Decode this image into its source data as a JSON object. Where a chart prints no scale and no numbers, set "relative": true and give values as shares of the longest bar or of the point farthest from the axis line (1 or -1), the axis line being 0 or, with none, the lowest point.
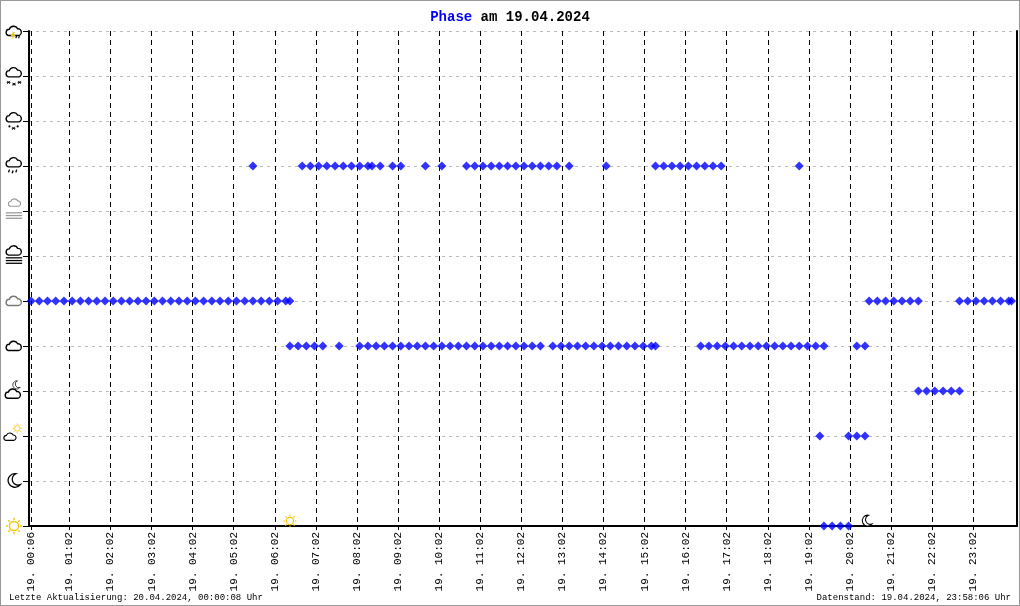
{
  "chart_data": {
    "type": "scatter",
    "title": "am 19.04.2024",
    "annotations": [
      "Letzte Aktualisierung: 20.04.2024, 00:00:08 Uhr",
      "Datenstand: 19.04.2024, 23:58:06 Uhr"
    ],
    "xlim": [
      "2024-04-19T00:03",
      "2024-04-20T00:06"
    ],
    "xticks": [
      {
        "value": "2024-04-19T00:06",
        "label": "19. 00:06"
      },
      {
        "value": "2024-04-19T01:02",
        "label": "19. 01:02"
      },
      {
        "value": "2024-04-19T02:02",
        "label": "19. 02:02"
      },
      {
        "value": "2024-04-19T03:02",
        "label": "19. 03:02"
      },
      {
        "value": "2024-04-19T04:02",
        "label": "19. 04:02"
      },
      {
        "value": "2024-04-19T05:02",
        "label": "19. 05:02"
      },
      {
        "value": "2024-04-19T06:02",
        "label": "19. 06:02"
      },
      {
        "value": "2024-04-19T07:02",
        "label": "19. 07:02"
      },
      {
        "value": "2024-04-19T08:02",
        "label": "19. 08:02"
      },
      {
        "value": "2024-04-19T09:02",
        "label": "19. 09:02"
      },
      {
        "value": "2024-04-19T10:02",
        "label": "19. 10:02"
      },
      {
        "value": "2024-04-19T11:02",
        "label": "19. 11:02"
      },
      {
        "value": "2024-04-19T12:02",
        "label": "19. 12:02"
      },
      {
        "value": "2024-04-19T13:02",
        "label": "19. 13:02"
      },
      {
        "value": "2024-04-19T14:02",
        "label": "19. 14:02"
      },
      {
        "value": "2024-04-19T15:02",
        "label": "19. 15:02"
      },
      {
        "value": "2024-04-19T16:02",
        "label": "19. 16:02"
      },
      {
        "value": "2024-04-19T17:02",
        "label": "19. 17:02"
      },
      {
        "value": "2024-04-19T18:02",
        "label": "19. 18:02"
      },
      {
        "value": "2024-04-19T19:02",
        "label": "19. 19:02"
      },
      {
        "value": "2024-04-19T20:02",
        "label": "19. 20:02"
      },
      {
        "value": "2024-04-19T21:02",
        "label": "19. 21:02"
      },
      {
        "value": "2024-04-19T22:02",
        "label": "19. 22:02"
      },
      {
        "value": "2024-04-19T23:02",
        "label": "19. 23:02"
      }
    ],
    "relative": true,
    "tick_labels": "x",
    "grid": true,
    "marker": "diamond",
    "legend": false,
    "series": [
      {
        "name": "Phase",
        "color": "#0000ff",
        "x": [
          "2024-04-19T00:06",
          "2024-04-19T00:18",
          "2024-04-19T00:30",
          "2024-04-19T00:42",
          "2024-04-19T00:54",
          "2024-04-19T01:06",
          "2024-04-19T01:18",
          "2024-04-19T01:30",
          "2024-04-19T01:42",
          "2024-04-19T01:54",
          "2024-04-19T02:06",
          "2024-04-19T02:18",
          "2024-04-19T02:30",
          "2024-04-19T02:42",
          "2024-04-19T02:54",
          "2024-04-19T03:06",
          "2024-04-19T03:18",
          "2024-04-19T03:30",
          "2024-04-19T03:42",
          "2024-04-19T03:54",
          "2024-04-19T04:06",
          "2024-04-19T04:18",
          "2024-04-19T04:30",
          "2024-04-19T04:42",
          "2024-04-19T04:54",
          "2024-04-19T05:06",
          "2024-04-19T05:18",
          "2024-04-19T05:30",
          "2024-04-19T05:42",
          "2024-04-19T05:54",
          "2024-04-19T06:06",
          "2024-04-19T06:18",
          "2024-04-19T06:24",
          "2024-04-19T05:30",
          "2024-04-19T06:42",
          "2024-04-19T06:54",
          "2024-04-19T07:06",
          "2024-04-19T07:18",
          "2024-04-19T07:30",
          "2024-04-19T07:42",
          "2024-04-19T07:54",
          "2024-04-19T08:06",
          "2024-04-19T08:18",
          "2024-04-19T08:24",
          "2024-04-19T08:36",
          "2024-04-19T08:54",
          "2024-04-19T09:06",
          "2024-04-19T09:42",
          "2024-04-19T10:06",
          "2024-04-19T10:42",
          "2024-04-19T10:54",
          "2024-04-19T11:06",
          "2024-04-19T11:18",
          "2024-04-19T11:30",
          "2024-04-19T11:42",
          "2024-04-19T11:54",
          "2024-04-19T12:06",
          "2024-04-19T12:18",
          "2024-04-19T12:30",
          "2024-04-19T12:42",
          "2024-04-19T12:54",
          "2024-04-19T13:12",
          "2024-04-19T14:06",
          "2024-04-19T15:18",
          "2024-04-19T15:30",
          "2024-04-19T15:42",
          "2024-04-19T15:54",
          "2024-04-19T16:06",
          "2024-04-19T16:18",
          "2024-04-19T16:30",
          "2024-04-19T16:42",
          "2024-04-19T16:54",
          "2024-04-19T18:48",
          "2024-04-19T06:24",
          "2024-04-19T06:36",
          "2024-04-19T06:48",
          "2024-04-19T07:00",
          "2024-04-19T07:12",
          "2024-04-19T07:36",
          "2024-04-19T08:06",
          "2024-04-19T08:18",
          "2024-04-19T08:30",
          "2024-04-19T08:42",
          "2024-04-19T08:54",
          "2024-04-19T09:06",
          "2024-04-19T09:18",
          "2024-04-19T09:30",
          "2024-04-19T09:42",
          "2024-04-19T09:54",
          "2024-04-19T10:06",
          "2024-04-19T10:18",
          "2024-04-19T10:30",
          "2024-04-19T10:42",
          "2024-04-19T10:54",
          "2024-04-19T11:06",
          "2024-04-19T11:18",
          "2024-04-19T11:30",
          "2024-04-19T11:42",
          "2024-04-19T11:54",
          "2024-04-19T12:06",
          "2024-04-19T12:18",
          "2024-04-19T12:30",
          "2024-04-19T12:48",
          "2024-04-19T13:00",
          "2024-04-19T13:12",
          "2024-04-19T13:24",
          "2024-04-19T13:36",
          "2024-04-19T13:48",
          "2024-04-19T14:00",
          "2024-04-19T14:12",
          "2024-04-19T14:24",
          "2024-04-19T14:36",
          "2024-04-19T14:48",
          "2024-04-19T15:00",
          "2024-04-19T15:12",
          "2024-04-19T15:18",
          "2024-04-19T16:24",
          "2024-04-19T16:36",
          "2024-04-19T16:48",
          "2024-04-19T17:00",
          "2024-04-19T17:12",
          "2024-04-19T17:24",
          "2024-04-19T17:36",
          "2024-04-19T17:48",
          "2024-04-19T18:00",
          "2024-04-19T18:12",
          "2024-04-19T18:24",
          "2024-04-19T18:36",
          "2024-04-19T18:48",
          "2024-04-19T19:00",
          "2024-04-19T19:12",
          "2024-04-19T19:24",
          "2024-04-19T20:12",
          "2024-04-19T20:24",
          "2024-04-19T19:24",
          "2024-04-19T19:36",
          "2024-04-19T19:48",
          "2024-04-19T20:00",
          "2024-04-19T19:18",
          "2024-04-19T20:00",
          "2024-04-19T20:12",
          "2024-04-19T20:24",
          "2024-04-19T20:30",
          "2024-04-19T20:42",
          "2024-04-19T20:54",
          "2024-04-19T21:06",
          "2024-04-19T21:18",
          "2024-04-19T21:30",
          "2024-04-19T21:42",
          "2024-04-19T22:42",
          "2024-04-19T22:54",
          "2024-04-19T23:06",
          "2024-04-19T23:18",
          "2024-04-19T23:30",
          "2024-04-19T23:42",
          "2024-04-19T23:54",
          "2024-04-19T23:58",
          "2024-04-19T21:42",
          "2024-04-19T21:54",
          "2024-04-19T22:06",
          "2024-04-19T22:18",
          "2024-04-19T22:30",
          "2024-04-19T22:42"
        ],
        "values": [
          0.625,
          0.625,
          0.625,
          0.625,
          0.625,
          0.625,
          0.625,
          0.625,
          0.625,
          0.625,
          0.625,
          0.625,
          0.625,
          0.625,
          0.625,
          0.625,
          0.625,
          0.625,
          0.625,
          0.625,
          0.625,
          0.625,
          0.625,
          0.625,
          0.625,
          0.625,
          0.625,
          0.625,
          0.625,
          0.625,
          0.625,
          0.625,
          0.625,
          1,
          1,
          1,
          1,
          1,
          1,
          1,
          1,
          1,
          1,
          1,
          1,
          1,
          1,
          1,
          1,
          1,
          1,
          1,
          1,
          1,
          1,
          1,
          1,
          1,
          1,
          1,
          1,
          1,
          1,
          1,
          1,
          1,
          1,
          1,
          1,
          1,
          1,
          1,
          1,
          0.5,
          0.5,
          0.5,
          0.5,
          0.5,
          0.5,
          0.5,
          0.5,
          0.5,
          0.5,
          0.5,
          0.5,
          0.5,
          0.5,
          0.5,
          0.5,
          0.5,
          0.5,
          0.5,
          0.5,
          0.5,
          0.5,
          0.5,
          0.5,
          0.5,
          0.5,
          0.5,
          0.5,
          0.5,
          0.5,
          0.5,
          0.5,
          0.5,
          0.5,
          0.5,
          0.5,
          0.5,
          0.5,
          0.5,
          0.5,
          0.5,
          0.5,
          0.5,
          0.5,
          0.5,
          0.5,
          0.5,
          0.5,
          0.5,
          0.5,
          0.5,
          0.5,
          0.5,
          0.5,
          0.5,
          0.5,
          0.5,
          0.5,
          0.5,
          0.5,
          0.5,
          0,
          0,
          0,
          0,
          0.25,
          0.25,
          0.25,
          0.25,
          0.625,
          0.625,
          0.625,
          0.625,
          0.625,
          0.625,
          0.625,
          0.625,
          0.625,
          0.625,
          0.625,
          0.625,
          0.625,
          0.625,
          0.625,
          0.375,
          0.375,
          0.375,
          0.375,
          0.375,
          0.375
        ]
      }
    ]
  }
}
